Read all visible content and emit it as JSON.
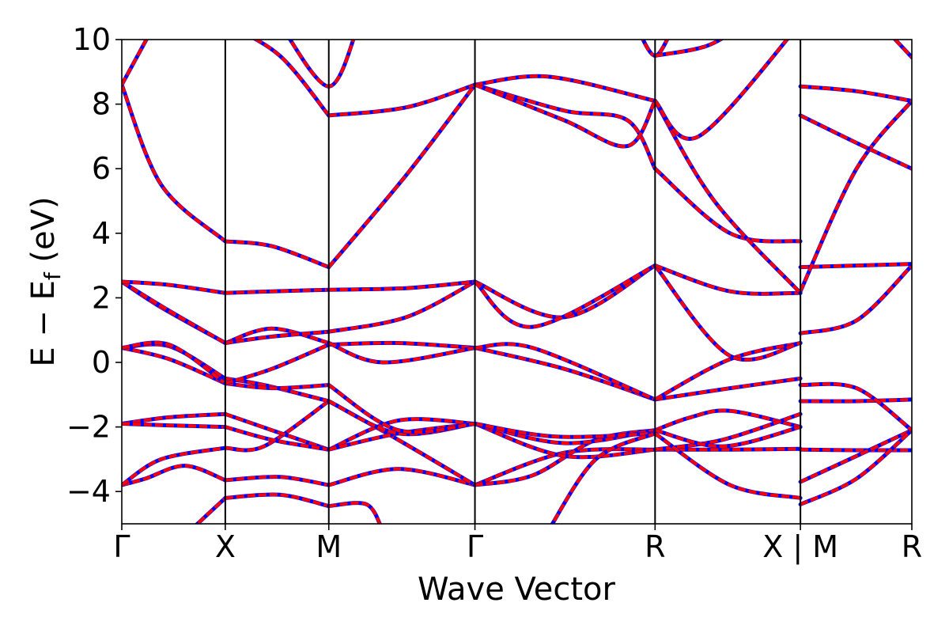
{
  "chart_data": {
    "type": "line",
    "title": "",
    "xlabel": "Wave Vector",
    "ylabel": "E − E",
    "ylabel_subscript": "f",
    "ylabel_unit": " (eV)",
    "ylim": [
      -5,
      10
    ],
    "yticks": [
      -4,
      -2,
      0,
      2,
      4,
      6,
      8,
      10
    ],
    "ytick_labels": [
      "−4",
      "−2",
      "0",
      "2",
      "4",
      "6",
      "8",
      "10"
    ],
    "xlim": [
      0,
      1
    ],
    "kpoints": [
      {
        "label": "Γ",
        "x": 0.0
      },
      {
        "label": "X",
        "x": 0.131
      },
      {
        "label": "M",
        "x": 0.262
      },
      {
        "label": "Γ",
        "x": 0.447
      },
      {
        "label": "R",
        "x": 0.675
      },
      {
        "label": "X | M",
        "x": 0.859
      },
      {
        "label": "R",
        "x": 1.0
      }
    ],
    "grid": false,
    "legend": "none",
    "colors": {
      "band_solid": "#0000ff",
      "band_dashed": "#ff0000",
      "axis": "#000000"
    },
    "series": [
      {
        "x": [
          0.0,
          0.03,
          0.08,
          0.131
        ],
        "y": [
          -3.8,
          -3.6,
          -3.2,
          -3.65
        ]
      },
      {
        "x": [
          0.131,
          0.2,
          0.262
        ],
        "y": [
          -3.65,
          -3.55,
          -3.8
        ]
      },
      {
        "x": [
          0.262,
          0.35,
          0.447
        ],
        "y": [
          -3.8,
          -3.3,
          -3.8
        ]
      },
      {
        "x": [
          0.447,
          0.56,
          0.675
        ],
        "y": [
          -3.8,
          -2.8,
          -2.7
        ]
      },
      {
        "x": [
          0.675,
          0.77,
          0.859
        ],
        "y": [
          -2.7,
          -2.7,
          -2.68
        ]
      },
      {
        "x": [
          0.859,
          0.93,
          1.0
        ],
        "y": [
          -2.7,
          -2.72,
          -2.72
        ]
      },
      {
        "x": [
          0.0,
          0.05,
          0.131
        ],
        "y": [
          -3.8,
          -3.0,
          -2.65
        ]
      },
      {
        "x": [
          0.131,
          0.18,
          0.262
        ],
        "y": [
          -2.65,
          -2.6,
          -1.2
        ]
      },
      {
        "x": [
          0.262,
          0.35,
          0.447
        ],
        "y": [
          -1.2,
          -2.4,
          -3.8
        ]
      },
      {
        "x": [
          0.447,
          0.52,
          0.6,
          0.675
        ],
        "y": [
          -3.8,
          -3.5,
          -2.4,
          -2.1
        ]
      },
      {
        "x": [
          0.675,
          0.72,
          0.77,
          0.859
        ],
        "y": [
          -2.1,
          -1.7,
          -1.5,
          -2.0
        ]
      },
      {
        "x": [
          0.859,
          0.93,
          1.0
        ],
        "y": [
          -3.7,
          -2.9,
          -2.1
        ]
      },
      {
        "x": [
          0.0,
          0.06,
          0.131
        ],
        "y": [
          -1.9,
          -1.7,
          -1.6
        ]
      },
      {
        "x": [
          0.131,
          0.19,
          0.262
        ],
        "y": [
          -1.6,
          -2.1,
          -2.7
        ]
      },
      {
        "x": [
          0.262,
          0.35,
          0.447
        ],
        "y": [
          -2.7,
          -1.8,
          -1.9
        ]
      },
      {
        "x": [
          0.447,
          0.56,
          0.675
        ],
        "y": [
          -1.9,
          -2.9,
          -2.7
        ]
      },
      {
        "x": [
          0.675,
          0.76,
          0.859
        ],
        "y": [
          -2.7,
          -2.4,
          -1.6
        ]
      },
      {
        "x": [
          0.859,
          0.93,
          1.0
        ],
        "y": [
          -4.4,
          -3.6,
          -2.1
        ]
      },
      {
        "x": [
          0.0,
          0.06,
          0.131
        ],
        "y": [
          -1.9,
          -1.95,
          -2.0
        ]
      },
      {
        "x": [
          0.131,
          0.19,
          0.262
        ],
        "y": [
          -2.0,
          -2.4,
          -2.7
        ]
      },
      {
        "x": [
          0.262,
          0.35,
          0.447
        ],
        "y": [
          -2.7,
          -2.2,
          -1.9
        ]
      },
      {
        "x": [
          0.447,
          0.56,
          0.675
        ],
        "y": [
          -1.9,
          -2.5,
          -2.1
        ]
      },
      {
        "x": [
          0.675,
          0.76,
          0.859
        ],
        "y": [
          -2.1,
          -2.6,
          -2.0
        ]
      },
      {
        "x": [
          0.859,
          0.93,
          1.0
        ],
        "y": [
          -1.2,
          -1.2,
          -1.15
        ]
      },
      {
        "x": [
          0.0,
          0.06,
          0.131
        ],
        "y": [
          0.45,
          0.5,
          -0.5
        ]
      },
      {
        "x": [
          0.131,
          0.18,
          0.262
        ],
        "y": [
          -0.5,
          -0.7,
          -1.2
        ]
      },
      {
        "x": [
          0.262,
          0.35,
          0.447
        ],
        "y": [
          -1.2,
          -2.2,
          -1.9
        ]
      },
      {
        "x": [
          0.447,
          0.55,
          0.675
        ],
        "y": [
          -1.9,
          -2.3,
          -2.2
        ]
      },
      {
        "x": [
          0.0,
          0.06,
          0.131
        ],
        "y": [
          0.45,
          0.1,
          -0.65
        ]
      },
      {
        "x": [
          0.131,
          0.19,
          0.262
        ],
        "y": [
          -0.65,
          -0.8,
          -0.7
        ]
      },
      {
        "x": [
          0.262,
          0.35,
          0.447
        ],
        "y": [
          -0.7,
          -2.1,
          -1.9
        ]
      },
      {
        "x": [
          0.0,
          0.06,
          0.131
        ],
        "y": [
          0.45,
          0.55,
          -0.65
        ]
      },
      {
        "x": [
          0.131,
          0.19,
          0.262
        ],
        "y": [
          -0.65,
          -0.2,
          0.55
        ]
      },
      {
        "x": [
          0.262,
          0.35,
          0.447
        ],
        "y": [
          0.55,
          0.6,
          0.45
        ]
      },
      {
        "x": [
          0.447,
          0.56,
          0.675
        ],
        "y": [
          0.45,
          -0.2,
          -1.15
        ]
      },
      {
        "x": [
          0.675,
          0.77,
          0.859
        ],
        "y": [
          -1.15,
          -0.8,
          -0.5
        ]
      },
      {
        "x": [
          0.859,
          0.93,
          1.0
        ],
        "y": [
          -0.7,
          -0.8,
          -2.1
        ]
      },
      {
        "x": [
          0.0,
          0.05,
          0.131
        ],
        "y": [
          2.5,
          1.7,
          0.6
        ]
      },
      {
        "x": [
          0.131,
          0.19,
          0.262
        ],
        "y": [
          0.6,
          1.05,
          0.6
        ]
      },
      {
        "x": [
          0.262,
          0.33,
          0.447
        ],
        "y": [
          0.6,
          0.0,
          0.45
        ]
      },
      {
        "x": [
          0.447,
          0.52,
          0.675
        ],
        "y": [
          0.45,
          0.45,
          -1.15
        ]
      },
      {
        "x": [
          0.675,
          0.77,
          0.859
        ],
        "y": [
          -1.15,
          0.1,
          0.6
        ]
      },
      {
        "x": [
          0.859,
          0.93,
          1.0
        ],
        "y": [
          0.9,
          1.3,
          3.0
        ]
      },
      {
        "x": [
          0.0,
          0.06,
          0.131
        ],
        "y": [
          2.5,
          1.6,
          0.6
        ]
      },
      {
        "x": [
          0.131,
          0.19,
          0.262
        ],
        "y": [
          0.6,
          0.8,
          0.95
        ]
      },
      {
        "x": [
          0.262,
          0.36,
          0.447
        ],
        "y": [
          0.95,
          1.4,
          2.5
        ]
      },
      {
        "x": [
          0.447,
          0.56,
          0.675
        ],
        "y": [
          2.5,
          1.4,
          3.0
        ]
      },
      {
        "x": [
          0.675,
          0.77,
          0.859
        ],
        "y": [
          3.0,
          0.2,
          0.6
        ]
      },
      {
        "x": [
          0.0,
          0.06,
          0.131
        ],
        "y": [
          2.5,
          2.4,
          2.15
        ]
      },
      {
        "x": [
          0.131,
          0.19,
          0.262
        ],
        "y": [
          2.15,
          2.2,
          2.25
        ]
      },
      {
        "x": [
          0.262,
          0.36,
          0.447
        ],
        "y": [
          2.25,
          2.3,
          2.5
        ]
      },
      {
        "x": [
          0.447,
          0.52,
          0.675
        ],
        "y": [
          2.5,
          1.1,
          3.0
        ]
      },
      {
        "x": [
          0.675,
          0.77,
          0.859
        ],
        "y": [
          3.0,
          2.2,
          2.15
        ]
      },
      {
        "x": [
          0.859,
          0.93,
          1.0
        ],
        "y": [
          2.95,
          3.0,
          3.05
        ]
      },
      {
        "x": [
          0.0,
          0.05,
          0.131
        ],
        "y": [
          8.6,
          5.5,
          3.75
        ]
      },
      {
        "x": [
          0.131,
          0.19,
          0.262
        ],
        "y": [
          3.75,
          3.6,
          2.95
        ]
      },
      {
        "x": [
          0.262,
          0.36,
          0.447
        ],
        "y": [
          2.95,
          5.8,
          8.6
        ]
      },
      {
        "x": [
          0.447,
          0.56,
          0.64,
          0.675
        ],
        "y": [
          8.6,
          7.8,
          7.5,
          6.0
        ]
      },
      {
        "x": [
          0.675,
          0.77,
          0.859
        ],
        "y": [
          6.0,
          4.0,
          3.75
        ]
      },
      {
        "x": [
          0.859,
          0.93,
          1.0
        ],
        "y": [
          2.2,
          6.0,
          8.1
        ]
      },
      {
        "x": [
          0.0,
          0.04
        ],
        "y": [
          8.6,
          10.4
        ]
      },
      {
        "x": [
          0.131,
          0.2,
          0.262
        ],
        "y": [
          10.5,
          9.5,
          7.65
        ]
      },
      {
        "x": [
          0.262,
          0.36,
          0.447
        ],
        "y": [
          7.65,
          7.9,
          8.6
        ]
      },
      {
        "x": [
          0.447,
          0.54,
          0.675
        ],
        "y": [
          8.6,
          8.85,
          8.1
        ]
      },
      {
        "x": [
          0.675,
          0.75,
          0.859
        ],
        "y": [
          8.1,
          5.0,
          2.15
        ]
      },
      {
        "x": [
          0.859,
          0.93,
          1.0
        ],
        "y": [
          8.55,
          8.4,
          8.1
        ]
      },
      {
        "x": [
          0.2,
          0.262,
          0.3
        ],
        "y": [
          10.5,
          8.55,
          10.5
        ]
      },
      {
        "x": [
          0.447,
          0.56,
          0.64,
          0.675
        ],
        "y": [
          8.6,
          7.5,
          6.7,
          8.1
        ]
      },
      {
        "x": [
          0.675,
          0.73,
          0.859
        ],
        "y": [
          8.1,
          7.0,
          10.5
        ]
      },
      {
        "x": [
          0.859,
          0.93,
          1.0
        ],
        "y": [
          7.65,
          6.8,
          6.0
        ]
      },
      {
        "x": [
          0.65,
          0.675,
          0.7
        ],
        "y": [
          10.5,
          9.5,
          10.5
        ]
      },
      {
        "x": [
          0.675,
          0.74,
          0.79
        ],
        "y": [
          9.5,
          9.8,
          10.5
        ]
      },
      {
        "x": [
          0.96,
          1.0
        ],
        "y": [
          10.5,
          9.45
        ]
      },
      {
        "x": [
          0.087,
          0.131
        ],
        "y": [
          -5.2,
          -4.2
        ]
      },
      {
        "x": [
          0.131,
          0.2,
          0.262
        ],
        "y": [
          -4.2,
          -4.1,
          -4.45
        ]
      },
      {
        "x": [
          0.262,
          0.31,
          0.33
        ],
        "y": [
          -4.45,
          -4.4,
          -5.2
        ]
      },
      {
        "x": [
          0.54,
          0.6,
          0.675
        ],
        "y": [
          -5.2,
          -3.0,
          -2.2
        ]
      },
      {
        "x": [
          0.675,
          0.77,
          0.859
        ],
        "y": [
          -2.2,
          -3.8,
          -4.2
        ]
      }
    ]
  }
}
